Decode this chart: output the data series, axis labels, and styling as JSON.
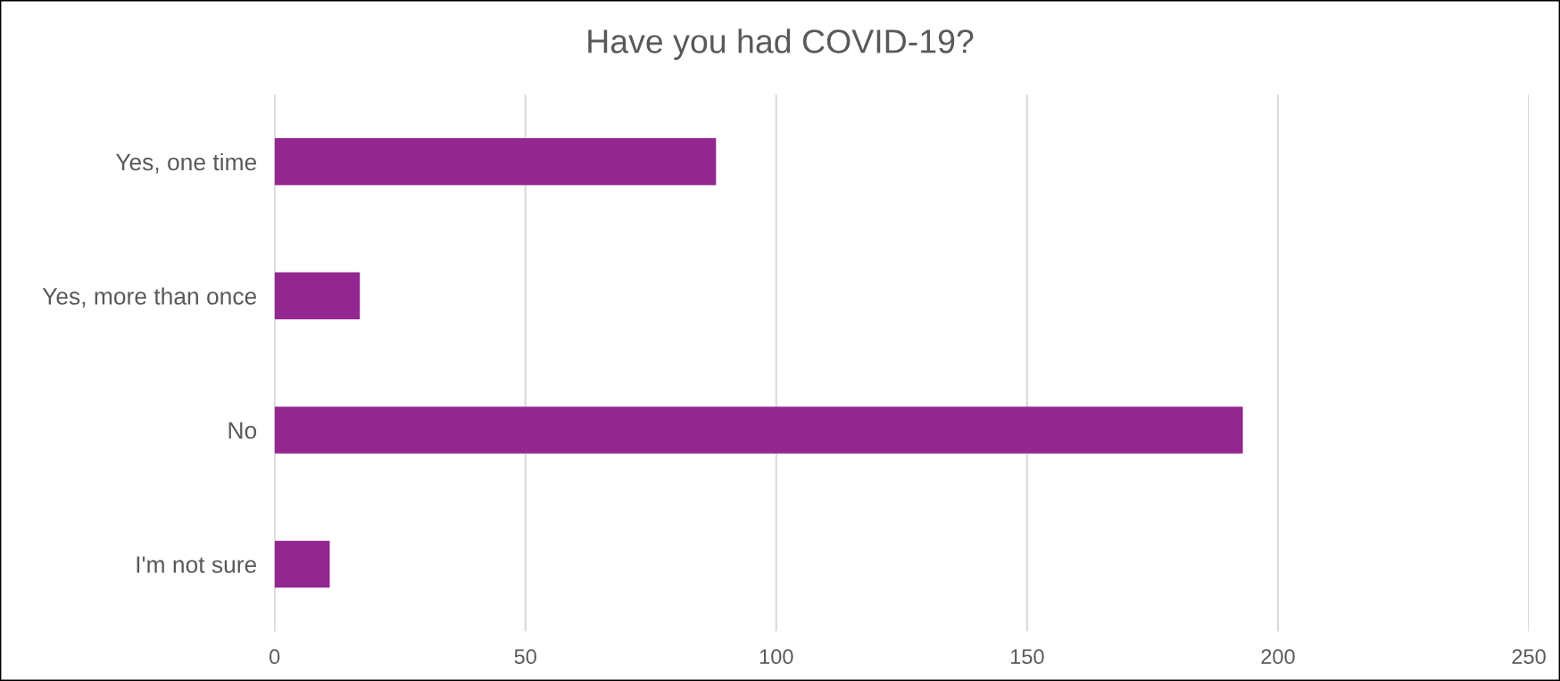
{
  "chart_data": {
    "type": "bar",
    "orientation": "horizontal",
    "title": "Have you had COVID-19?",
    "categories": [
      "Yes, one time",
      "Yes, more than once",
      "No",
      "I'm not sure"
    ],
    "values": [
      88,
      17,
      193,
      11
    ],
    "color": "#92278f",
    "xlim": [
      0,
      250
    ],
    "xticks": [
      0,
      50,
      100,
      150,
      200,
      250
    ],
    "grid": "x",
    "legend": false
  }
}
